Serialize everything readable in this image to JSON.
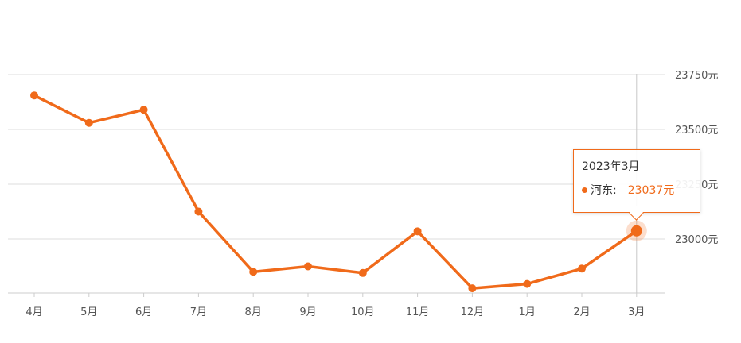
{
  "chart_data": {
    "type": "line",
    "categories": [
      "4月",
      "5月",
      "6月",
      "7月",
      "8月",
      "9月",
      "10月",
      "11月",
      "12月",
      "1月",
      "2月",
      "3月"
    ],
    "series": [
      {
        "name": "河东",
        "values": [
          23655,
          23530,
          23590,
          23125,
          22850,
          22875,
          22845,
          23035,
          22775,
          22795,
          22865,
          23037
        ]
      }
    ],
    "y_ticks": [
      "23000元",
      "23250元",
      "23500元",
      "23750元"
    ],
    "y_tick_values": [
      23000,
      23250,
      23500,
      23750
    ],
    "ylim": [
      22750,
      23750
    ],
    "y_axis_side": "right",
    "grid": true,
    "color": "#f06a1a",
    "highlight_index": 11
  },
  "tooltip": {
    "title": "2023年3月",
    "series_label": "河东:",
    "value_label": "23037元"
  }
}
